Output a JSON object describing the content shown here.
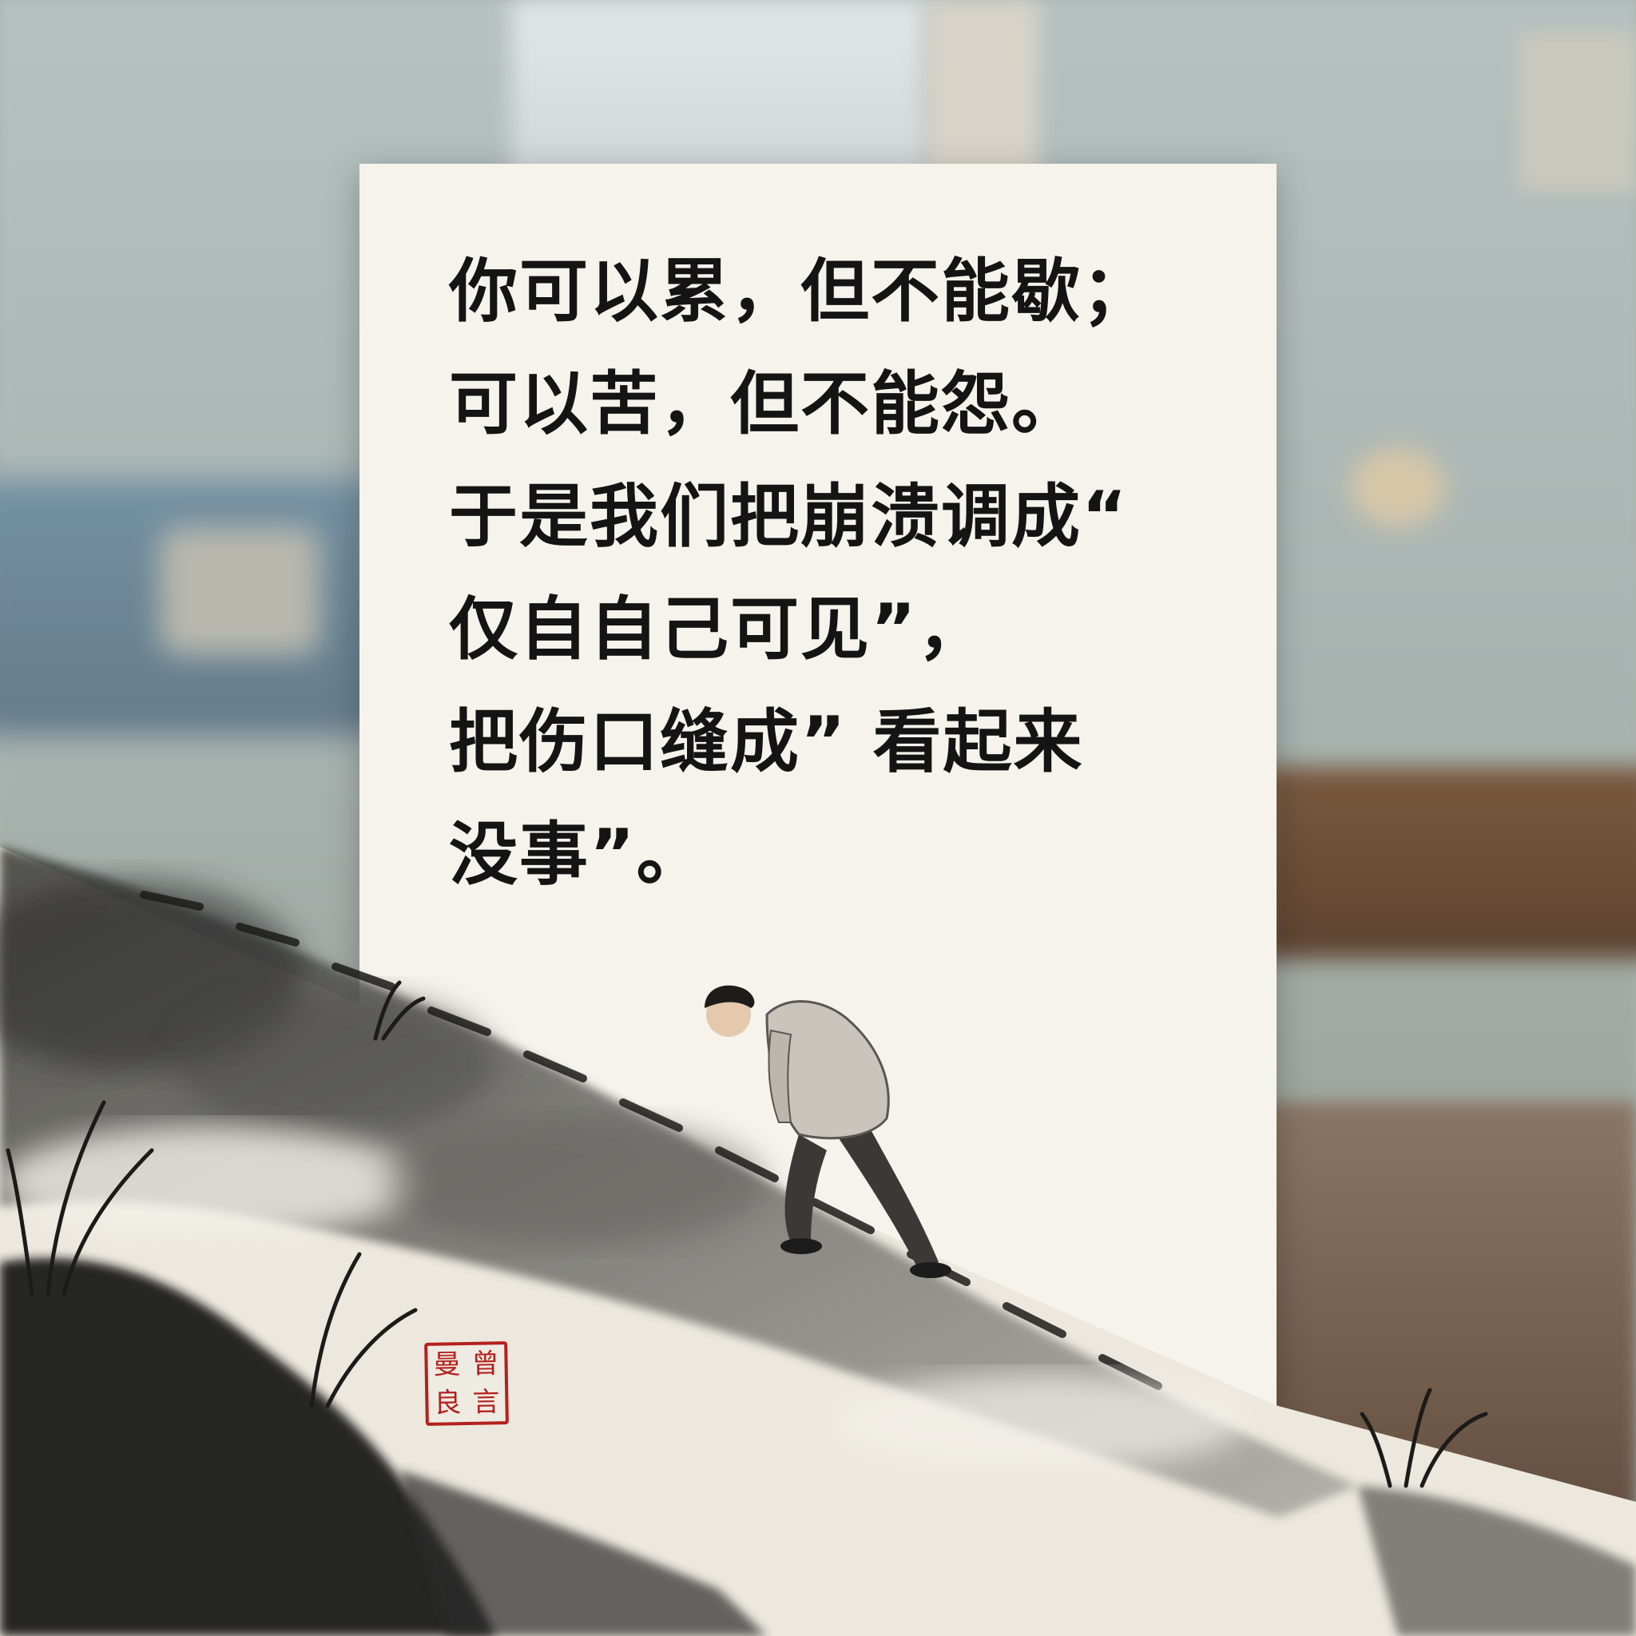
{
  "poem": {
    "lines": [
      "你可以累，但不能歇；",
      "可以苦，但不能怨。",
      "于是我们把崩溃调成“",
      "仅自自己可见”，",
      "把伤口缝成” 看起来",
      "没事”。"
    ]
  },
  "seal": {
    "chars": [
      "曼",
      "曾",
      "良",
      "言"
    ],
    "color": "#b3201c"
  },
  "palette": {
    "paper": "#f6f3ec",
    "ink": "#141414"
  }
}
